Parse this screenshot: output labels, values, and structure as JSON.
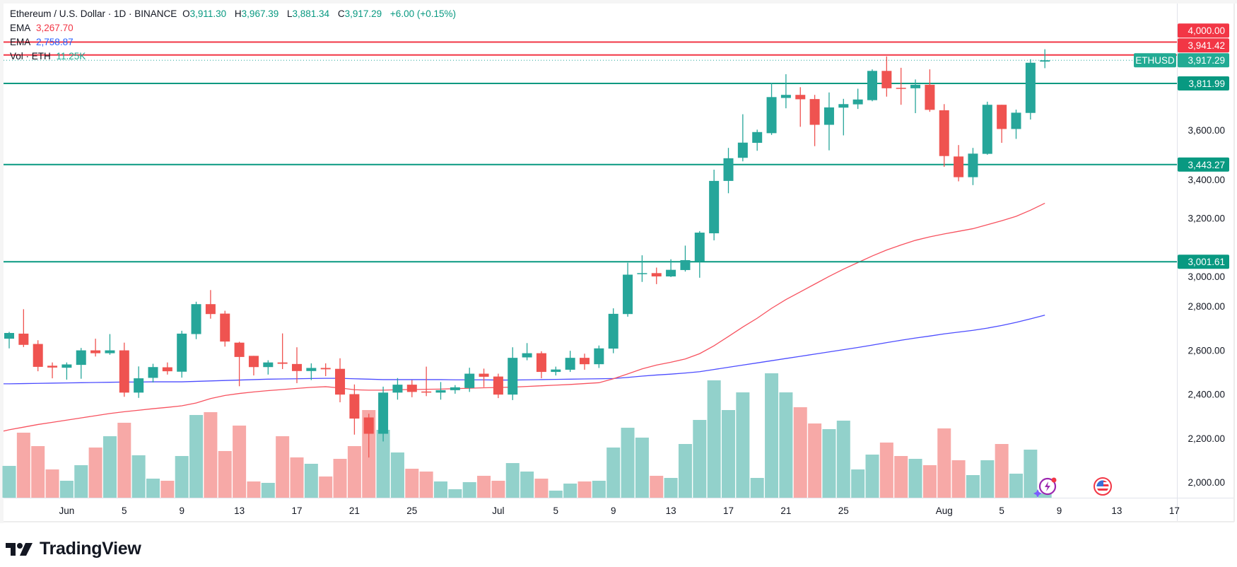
{
  "header": {
    "symbol_title": "Ethereum / U.S. Dollar · 1D · BINANCE",
    "open_label": "O",
    "open": "3,911.30",
    "high_label": "H",
    "high": "3,967.39",
    "low_label": "L",
    "low": "3,881.34",
    "close_label": "C",
    "close": "3,917.29",
    "change": "+6.00 (+0.15%)"
  },
  "indicators": [
    {
      "name": "EMA",
      "value": "3,267.70",
      "color": "#f23645"
    },
    {
      "name": "EMA",
      "value": "2,758.87",
      "color": "#2962ff"
    },
    {
      "name": "Vol · ETH",
      "value": "11.25K",
      "color": "#22ab94"
    }
  ],
  "colors": {
    "up": "#26a69a",
    "down": "#ef5350",
    "up_volume": "#92d1cb",
    "down_volume": "#f7a9a7",
    "red_level": "#f23645",
    "green_level": "#089981",
    "ema_fast": "#f7525f",
    "ema_slow": "#4c4cff"
  },
  "branding": {
    "logo_text": "TradingView"
  },
  "chart_data": {
    "type": "candlestick",
    "symbol_tag": "ETHUSD",
    "last_price": "3,917.29",
    "ylim": [
      1900,
      4150
    ],
    "y_ticks": [
      "2,000.00",
      "2,200.00",
      "2,400.00",
      "2,600.00",
      "2,800.00",
      "3,000.00",
      "3,200.00",
      "3,400.00",
      "3,600.00"
    ],
    "y_tick_values": [
      2000,
      2200,
      2400,
      2600,
      2800,
      3000,
      3200,
      3400,
      3600
    ],
    "x_ticks": [
      {
        "label": "Jun",
        "candle": 4
      },
      {
        "label": "5",
        "candle": 8
      },
      {
        "label": "9",
        "candle": 12
      },
      {
        "label": "13",
        "candle": 16
      },
      {
        "label": "17",
        "candle": 20
      },
      {
        "label": "21",
        "candle": 24
      },
      {
        "label": "25",
        "candle": 28
      },
      {
        "label": "Jul",
        "candle": 34
      },
      {
        "label": "5",
        "candle": 38
      },
      {
        "label": "9",
        "candle": 42
      },
      {
        "label": "13",
        "candle": 46
      },
      {
        "label": "17",
        "candle": 50
      },
      {
        "label": "21",
        "candle": 54
      },
      {
        "label": "25",
        "candle": 58
      },
      {
        "label": "Aug",
        "candle": 65
      },
      {
        "label": "5",
        "candle": 69
      },
      {
        "label": "9",
        "candle": 73
      },
      {
        "label": "13",
        "candle": 77
      },
      {
        "label": "17",
        "candle": 81
      }
    ],
    "levels": [
      {
        "value": 4000.0,
        "label": "4,000.00",
        "type": "resistance-red"
      },
      {
        "value": 3941.42,
        "label": "3,941.42",
        "type": "resistance-red"
      },
      {
        "value": 3811.99,
        "label": "3,811.99",
        "type": "support-green"
      },
      {
        "value": 3443.27,
        "label": "3,443.27",
        "type": "support-green"
      },
      {
        "value": 3001.61,
        "label": "3,001.61",
        "type": "support-green"
      }
    ],
    "ohlc": [
      [
        2652,
        2683,
        2608,
        2678
      ],
      [
        2675,
        2786,
        2614,
        2624
      ],
      [
        2628,
        2645,
        2504,
        2524
      ],
      [
        2529,
        2544,
        2472,
        2521
      ],
      [
        2520,
        2544,
        2466,
        2535
      ],
      [
        2533,
        2610,
        2470,
        2599
      ],
      [
        2599,
        2652,
        2571,
        2586
      ],
      [
        2586,
        2673,
        2579,
        2599
      ],
      [
        2599,
        2634,
        2388,
        2407
      ],
      [
        2407,
        2526,
        2383,
        2472
      ],
      [
        2474,
        2538,
        2453,
        2523
      ],
      [
        2522,
        2544,
        2489,
        2504
      ],
      [
        2502,
        2688,
        2475,
        2675
      ],
      [
        2673,
        2820,
        2650,
        2809
      ],
      [
        2809,
        2873,
        2743,
        2764
      ],
      [
        2766,
        2779,
        2616,
        2639
      ],
      [
        2634,
        2638,
        2436,
        2569
      ],
      [
        2574,
        2574,
        2485,
        2523
      ],
      [
        2523,
        2554,
        2489,
        2544
      ],
      [
        2544,
        2676,
        2514,
        2538
      ],
      [
        2537,
        2613,
        2450,
        2505
      ],
      [
        2505,
        2540,
        2464,
        2519
      ],
      [
        2519,
        2540,
        2482,
        2513
      ],
      [
        2515,
        2563,
        2363,
        2398
      ],
      [
        2400,
        2444,
        2216,
        2289
      ],
      [
        2294,
        2311,
        2112,
        2220
      ],
      [
        2220,
        2434,
        2185,
        2407
      ],
      [
        2407,
        2473,
        2375,
        2443
      ],
      [
        2443,
        2464,
        2386,
        2410
      ],
      [
        2412,
        2525,
        2391,
        2407
      ],
      [
        2407,
        2455,
        2375,
        2418
      ],
      [
        2418,
        2441,
        2402,
        2431
      ],
      [
        2428,
        2520,
        2410,
        2493
      ],
      [
        2493,
        2516,
        2432,
        2479
      ],
      [
        2480,
        2493,
        2382,
        2398
      ],
      [
        2398,
        2613,
        2373,
        2565
      ],
      [
        2567,
        2632,
        2554,
        2586
      ],
      [
        2586,
        2595,
        2472,
        2501
      ],
      [
        2501,
        2525,
        2485,
        2512
      ],
      [
        2511,
        2597,
        2501,
        2565
      ],
      [
        2565,
        2584,
        2511,
        2536
      ],
      [
        2536,
        2621,
        2519,
        2608
      ],
      [
        2607,
        2790,
        2586,
        2765
      ],
      [
        2764,
        2997,
        2752,
        2943
      ],
      [
        2946,
        3031,
        2910,
        2950
      ],
      [
        2950,
        2975,
        2900,
        2935
      ],
      [
        2935,
        3013,
        2932,
        2965
      ],
      [
        2964,
        3075,
        2957,
        3009
      ],
      [
        3004,
        3141,
        2929,
        3134
      ],
      [
        3131,
        3420,
        3099,
        3369
      ],
      [
        3369,
        3519,
        3313,
        3472
      ],
      [
        3474,
        3672,
        3458,
        3543
      ],
      [
        3542,
        3602,
        3506,
        3591
      ],
      [
        3586,
        3815,
        3578,
        3750
      ],
      [
        3746,
        3854,
        3699,
        3760
      ],
      [
        3760,
        3795,
        3615,
        3740
      ],
      [
        3741,
        3760,
        3527,
        3624
      ],
      [
        3624,
        3771,
        3508,
        3703
      ],
      [
        3702,
        3742,
        3576,
        3718
      ],
      [
        3717,
        3788,
        3696,
        3739
      ],
      [
        3736,
        3876,
        3731,
        3869
      ],
      [
        3869,
        3935,
        3752,
        3790
      ],
      [
        3792,
        3883,
        3715,
        3790
      ],
      [
        3790,
        3830,
        3677,
        3806
      ],
      [
        3806,
        3876,
        3683,
        3692
      ],
      [
        3690,
        3718,
        3433,
        3482
      ],
      [
        3480,
        3532,
        3367,
        3386
      ],
      [
        3386,
        3519,
        3350,
        3493
      ],
      [
        3492,
        3729,
        3488,
        3715
      ],
      [
        3715,
        3715,
        3542,
        3605
      ],
      [
        3605,
        3693,
        3560,
        3679
      ],
      [
        3678,
        3922,
        3648,
        3906
      ],
      [
        3911.3,
        3967.39,
        3881.34,
        3917.29
      ]
    ],
    "volume_k_eth": [
      84.4,
      172.5,
      136.9,
      75,
      45,
      86.3,
      133.1,
      163.1,
      198.8,
      112.5,
      50.6,
      45,
      110.6,
      219.4,
      226.9,
      123.8,
      191.3,
      43.1,
      39.4,
      163.1,
      106.9,
      90,
      56.3,
      103.1,
      136.9,
      232.5,
      180,
      120,
      76.9,
      69.4,
      43.1,
      22.5,
      41.3,
      58.1,
      45,
      91.9,
      69.4,
      50.6,
      18.8,
      37.5,
      43.1,
      45,
      133.1,
      185.6,
      159.4,
      58.1,
      52.5,
      142.5,
      206.3,
      311.3,
      232.5,
      279.4,
      52.5,
      330,
      279.4,
      240,
      196.9,
      181.9,
      204.4,
      75,
      114.4,
      146.3,
      110.6,
      103.1,
      86.3,
      183.8,
      99.4,
      60,
      99.4,
      142.5,
      63.8,
      127.5,
      11.25
    ],
    "ema_fast": [
      2238,
      2250,
      2262,
      2272,
      2282,
      2292,
      2302,
      2312,
      2320,
      2327,
      2334,
      2340,
      2347,
      2360,
      2380,
      2394,
      2403,
      2410,
      2416,
      2421,
      2426,
      2431,
      2434,
      2428,
      2420,
      2418,
      2418,
      2420,
      2421,
      2422,
      2423,
      2425,
      2427,
      2429,
      2430,
      2432,
      2435,
      2438,
      2441,
      2444,
      2448,
      2452,
      2470,
      2492,
      2515,
      2532,
      2545,
      2560,
      2584,
      2620,
      2662,
      2705,
      2745,
      2790,
      2830,
      2865,
      2900,
      2935,
      2968,
      2998,
      3028,
      3055,
      3078,
      3099,
      3115,
      3128,
      3140,
      3152,
      3170,
      3188,
      3208,
      3236,
      3267.7
    ],
    "ema_slow": [
      2447,
      2448,
      2449,
      2450,
      2451,
      2452,
      2453,
      2454,
      2455,
      2455,
      2456,
      2456,
      2456,
      2458,
      2460,
      2462,
      2464,
      2466,
      2468,
      2469,
      2470,
      2471,
      2472,
      2472,
      2470,
      2468,
      2466,
      2466,
      2466,
      2466,
      2466,
      2465,
      2465,
      2465,
      2464,
      2464,
      2465,
      2466,
      2467,
      2468,
      2469,
      2470,
      2471,
      2476,
      2482,
      2487,
      2491,
      2496,
      2502,
      2512,
      2522,
      2532,
      2542,
      2552,
      2562,
      2572,
      2582,
      2592,
      2602,
      2612,
      2623,
      2634,
      2645,
      2655,
      2664,
      2674,
      2682,
      2690,
      2700,
      2712,
      2726,
      2742,
      2758.87
    ]
  }
}
